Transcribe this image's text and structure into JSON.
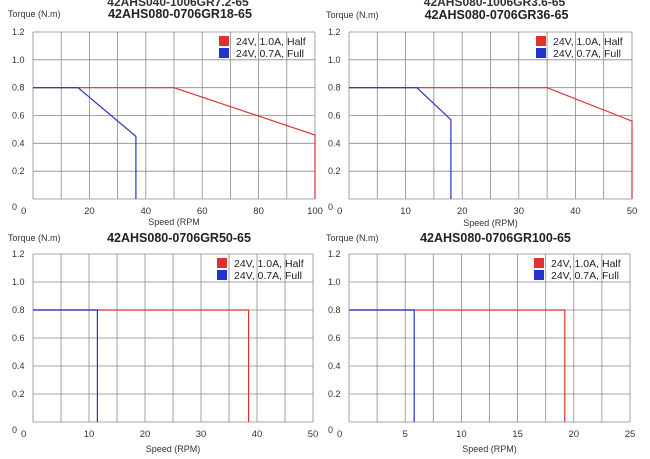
{
  "colors": {
    "half": "#e03131",
    "full": "#2233cc",
    "grid": "#8a8a8a"
  },
  "chart_data": [
    {
      "type": "line",
      "title": "42AHS080-0706GR18-65",
      "clipped_header": "42AHS040-1006GR7.2-65",
      "ylabel": "Torque (N.m)",
      "xlabel": "Speed (RPM",
      "xlim": [
        0,
        100
      ],
      "ylim": [
        0,
        1.2
      ],
      "xticks": [
        "0",
        "20",
        "40",
        "60",
        "80",
        "100"
      ],
      "yticks": [
        "0",
        "0.2",
        "0.4",
        "0.6",
        "0.8",
        "1.0",
        "1.2"
      ],
      "grid": true,
      "legend": "top-right",
      "series": [
        {
          "name": "24V, 1.0A, Half",
          "color": "half",
          "x": [
            0,
            50,
            100,
            100
          ],
          "y": [
            0.8,
            0.8,
            0.46,
            0
          ]
        },
        {
          "name": "24V, 0.7A, Full",
          "color": "full",
          "x": [
            0,
            16,
            36.5,
            36.5
          ],
          "y": [
            0.8,
            0.8,
            0.45,
            0
          ]
        }
      ]
    },
    {
      "type": "line",
      "title": "42AHS080-0706GR36-65",
      "clipped_header": "42AHS080-1006GR3.6-65",
      "ylabel": "Torque (N.m)",
      "xlabel": "Speed (RPM)",
      "xlim": [
        0,
        50
      ],
      "ylim": [
        0,
        1.2
      ],
      "xticks": [
        "0",
        "10",
        "20",
        "30",
        "40",
        "50"
      ],
      "yticks": [
        "0",
        "0.2",
        "0.4",
        "0.6",
        "0.8",
        "1.0",
        "1.2"
      ],
      "grid": true,
      "legend": "top-right",
      "series": [
        {
          "name": "24V, 1.0A, Half",
          "color": "half",
          "x": [
            0,
            35,
            50,
            50
          ],
          "y": [
            0.8,
            0.8,
            0.56,
            0
          ]
        },
        {
          "name": "24V, 0.7A, Full",
          "color": "full",
          "x": [
            0,
            12,
            18,
            18
          ],
          "y": [
            0.8,
            0.8,
            0.57,
            0
          ]
        }
      ]
    },
    {
      "type": "line",
      "title": "42AHS080-0706GR50-65",
      "ylabel": "Torque (N.m)",
      "xlabel": "Speed (RPM)",
      "xlim": [
        0,
        50
      ],
      "ylim": [
        0,
        1.2
      ],
      "xticks": [
        "0",
        "10",
        "20",
        "30",
        "40",
        "50"
      ],
      "yticks": [
        "0",
        "0.2",
        "0.4",
        "0.6",
        "0.8",
        "1.0",
        "1.2"
      ],
      "grid": true,
      "legend": "top-right",
      "series": [
        {
          "name": "24V, 1.0A, Half",
          "color": "half",
          "x": [
            0,
            38.5,
            38.5
          ],
          "y": [
            0.8,
            0.8,
            0
          ]
        },
        {
          "name": "24V, 0.7A, Full",
          "color": "full",
          "x": [
            0,
            11.5,
            11.5
          ],
          "y": [
            0.8,
            0.8,
            0
          ]
        }
      ]
    },
    {
      "type": "line",
      "title": "42AHS080-0706GR100-65",
      "ylabel": "Torque (N.m)",
      "xlabel": "Speed (RPM)",
      "xlim": [
        0,
        25
      ],
      "ylim": [
        0,
        1.2
      ],
      "xticks": [
        "0",
        "5",
        "10",
        "15",
        "20",
        "25"
      ],
      "yticks": [
        "0",
        "0.2",
        "0.4",
        "0.6",
        "0.8",
        "1.0",
        "1.2"
      ],
      "grid": true,
      "legend": "top-right",
      "series": [
        {
          "name": "24V, 1.0A, Half",
          "color": "half",
          "x": [
            0,
            19.2,
            19.2
          ],
          "y": [
            0.8,
            0.8,
            0
          ]
        },
        {
          "name": "24V, 0.7A, Full",
          "color": "full",
          "x": [
            0,
            5.8,
            5.8
          ],
          "y": [
            0.8,
            0.8,
            0
          ]
        }
      ]
    }
  ]
}
